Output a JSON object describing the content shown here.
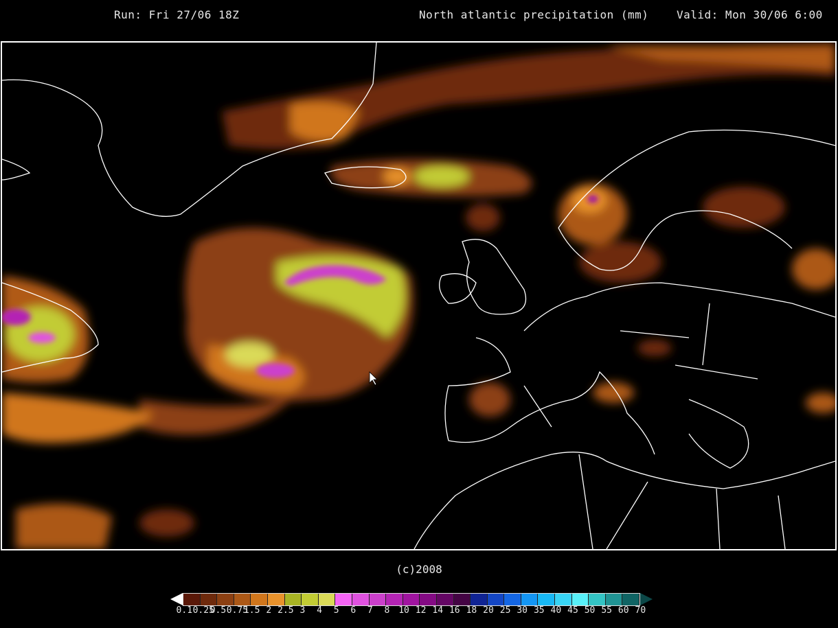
{
  "header": {
    "run": "Run: Fri 27/06 18Z",
    "title": "North atlantic precipitation (mm)",
    "valid": "Valid: Mon 30/06 6:00"
  },
  "copyright": "(c)2008",
  "legend": {
    "labels": [
      "0.1",
      "0.25",
      "0.5",
      "0.75",
      "1.5",
      "2",
      "2.5",
      "3",
      "4",
      "5",
      "6",
      "7",
      "8",
      "10",
      "12",
      "14",
      "16",
      "18",
      "20",
      "25",
      "30",
      "35",
      "40",
      "45",
      "50",
      "55",
      "60",
      "70"
    ],
    "colors": [
      "#5a1808",
      "#6e2a0c",
      "#8c4012",
      "#ac5816",
      "#d0761c",
      "#e8922c",
      "#a8b424",
      "#c2cc34",
      "#dada58",
      "#f464f4",
      "#e052e0",
      "#cc40cc",
      "#b424b4",
      "#a014a0",
      "#840a84",
      "#640664",
      "#440444",
      "#102494",
      "#1446c4",
      "#1466e4",
      "#1496f4",
      "#18b8f4",
      "#38d4f4",
      "#58f0f8",
      "#34c4c4",
      "#209494",
      "#106464"
    ],
    "left_arrow_color": "#ffffff",
    "right_arrow_color": "#0c4848"
  },
  "map": {
    "background": "#000000",
    "coastline_color": "#ffffff"
  }
}
